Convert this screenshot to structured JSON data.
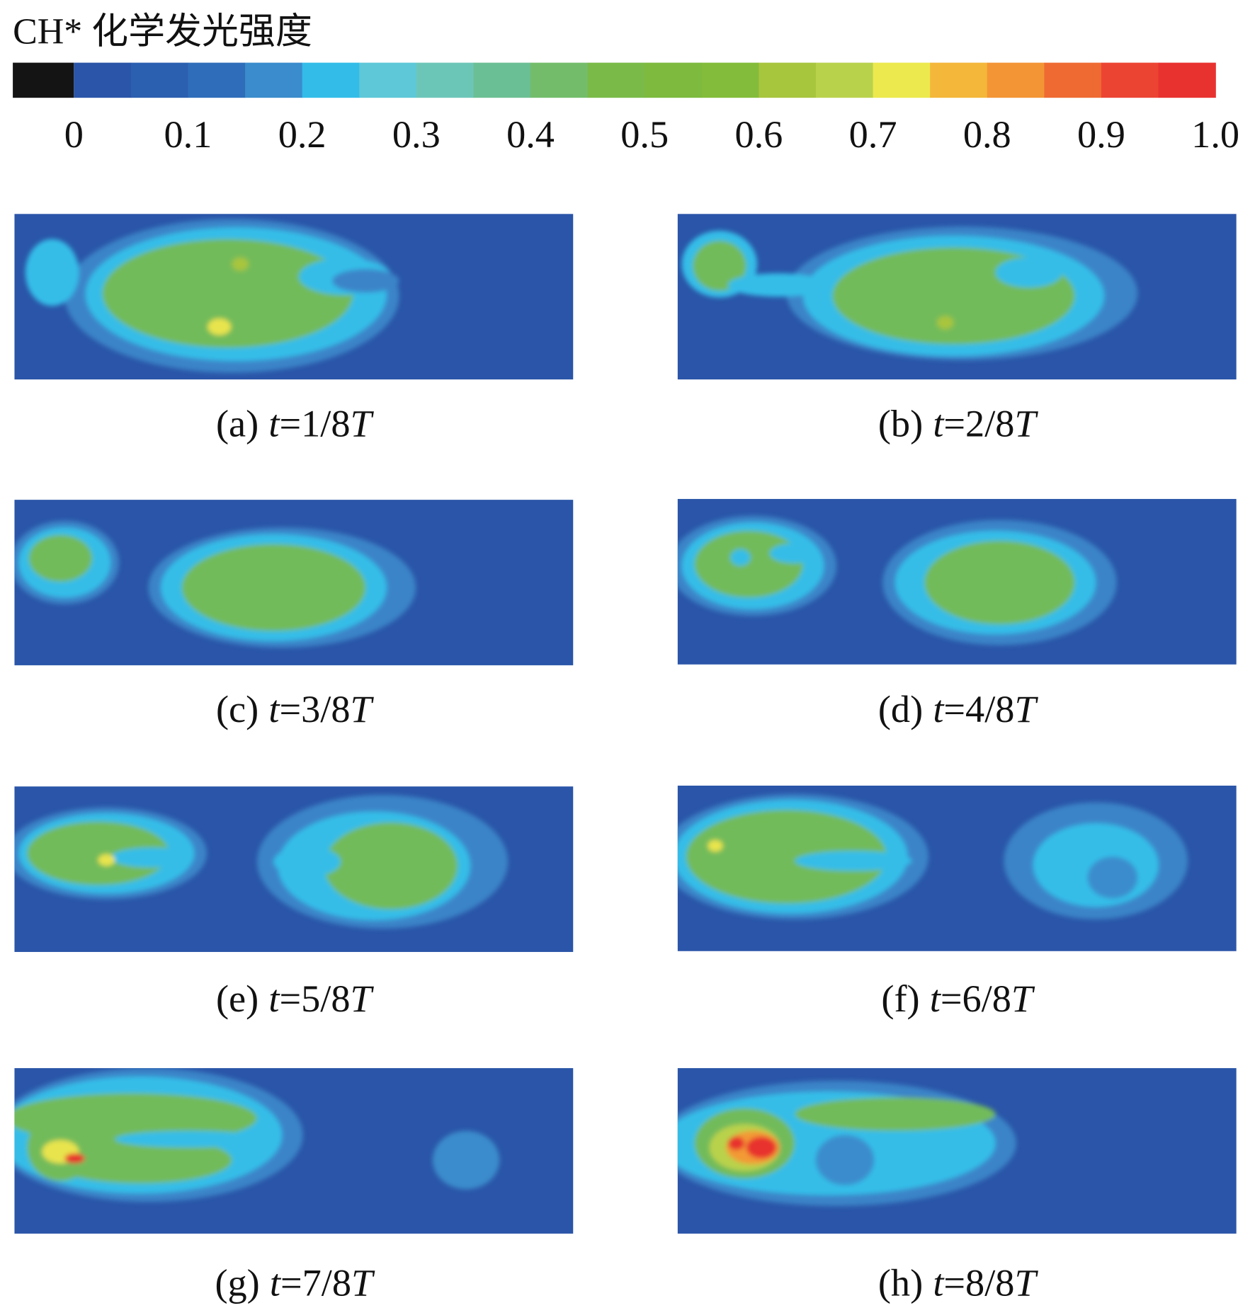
{
  "colorbar": {
    "title": "CH* 化学发光强度",
    "under_color": "#141414",
    "colors": [
      "#2a55a8",
      "#2b5fb0",
      "#2f6dba",
      "#3a8ccc",
      "#33bce8",
      "#5ec8d8",
      "#6cc6b8",
      "#6bbf94",
      "#73bd6a",
      "#7aba48",
      "#7dba3e",
      "#83bc3a",
      "#a8c53e",
      "#b9d24c",
      "#ece94e",
      "#f4b73a",
      "#f39535",
      "#ef6a33",
      "#ec4433",
      "#e8322f"
    ],
    "ticks": [
      0,
      0.1,
      0.2,
      0.3,
      0.4,
      0.5,
      0.6,
      0.7,
      0.8,
      0.9,
      {
        "value": 1,
        "label": "1.0"
      }
    ]
  },
  "panels": [
    {
      "caption": [
        "(a)",
        "t",
        "=1/8",
        "T"
      ]
    },
    {
      "caption": [
        "(b)",
        "t",
        "=2/8",
        "T"
      ]
    },
    {
      "caption": [
        "(c)",
        "t",
        "=3/8",
        "T"
      ]
    },
    {
      "caption": [
        "(d)",
        "t",
        "=4/8",
        "T"
      ]
    },
    {
      "caption": [
        "(e)",
        "t",
        "=5/8",
        "T"
      ]
    },
    {
      "caption": [
        "(f)",
        "t",
        "=6/8",
        "T"
      ]
    },
    {
      "caption": [
        "(g)",
        "t",
        "=7/8",
        "T"
      ]
    },
    {
      "caption": [
        "(h)",
        "t",
        "=8/8",
        "T"
      ]
    }
  ]
}
